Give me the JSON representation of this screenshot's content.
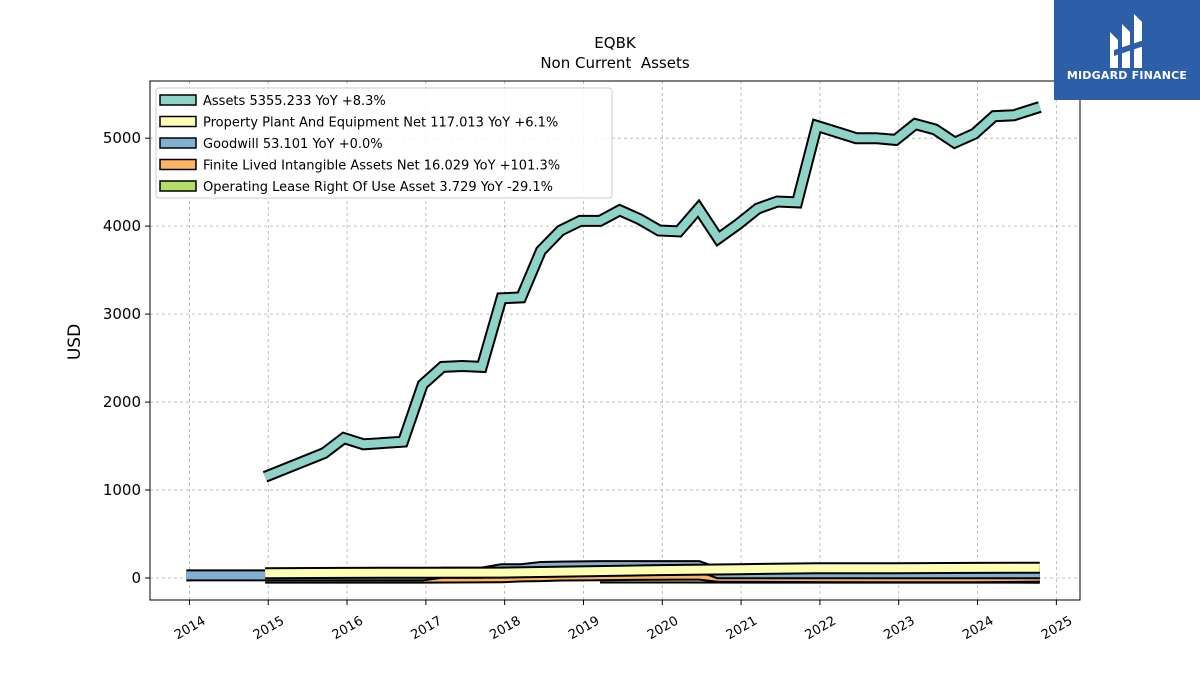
{
  "brand": {
    "name": "MIDGARD FINANCE",
    "bg_color": "#2c5fa8",
    "icon": "midgard-logo-icon"
  },
  "chart_data": {
    "type": "area",
    "title": "EQBK",
    "subtitle": "Non Current  Assets",
    "ylabel": "USD",
    "xlabel": "",
    "ylim": [
      -250,
      5650
    ],
    "xlim": [
      2013.5,
      2025.3
    ],
    "yticks": [
      0,
      1000,
      2000,
      3000,
      4000,
      5000
    ],
    "xticks": [
      "2014",
      "2015",
      "2016",
      "2017",
      "2018",
      "2019",
      "2020",
      "2021",
      "2022",
      "2023",
      "2024",
      "2025"
    ],
    "grid": true,
    "legend_position": "top-left",
    "series": [
      {
        "name": "Assets  5355.233 YoY +8.3%",
        "color": "#8dd3c7",
        "x": [
          2014.96,
          2015.71,
          2015.96,
          2016.21,
          2016.71,
          2016.96,
          2017.21,
          2017.46,
          2017.71,
          2017.96,
          2018.21,
          2018.46,
          2018.71,
          2018.96,
          2019.21,
          2019.46,
          2019.71,
          2019.96,
          2020.21,
          2020.46,
          2020.71,
          2020.96,
          2021.21,
          2021.46,
          2021.71,
          2021.96,
          2022.21,
          2022.46,
          2022.71,
          2022.96,
          2023.21,
          2023.46,
          2023.71,
          2023.96,
          2024.21,
          2024.46,
          2024.79
        ],
        "values": [
          1150,
          1420,
          1590,
          1520,
          1550,
          2200,
          2400,
          2410,
          2400,
          3180,
          3190,
          3720,
          3950,
          4060,
          4060,
          4180,
          4080,
          3950,
          3940,
          4200,
          3860,
          4020,
          4200,
          4280,
          4270,
          5140,
          5070,
          5000,
          5000,
          4980,
          5160,
          5100,
          4950,
          5050,
          5250,
          5260,
          5355
        ]
      },
      {
        "name": "Property Plant And Equipment Net  117.013 YoY +6.1%",
        "color": "#ffffb3",
        "x": [
          2014.96,
          2015.96,
          2016.96,
          2017.96,
          2018.96,
          2019.96,
          2020.96,
          2021.96,
          2022.96,
          2023.96,
          2024.79
        ],
        "values": [
          55,
          58,
          60,
          62,
          75,
          90,
          100,
          110,
          110,
          115,
          117
        ]
      },
      {
        "name": "Goodwill  53.101 YoY +0.0%",
        "color": "#80b1d3",
        "x": [
          2013.96,
          2014.96,
          2015.96,
          2016.96,
          2017.21,
          2017.71,
          2017.96,
          2018.21,
          2018.46,
          2018.71,
          2019.21,
          2019.96,
          2020.46,
          2020.71,
          2021.71,
          2021.96,
          2022.96,
          2023.96,
          2024.79
        ],
        "values": [
          30,
          30,
          30,
          30,
          60,
          60,
          100,
          100,
          125,
          130,
          135,
          135,
          135,
          53,
          53,
          53,
          53,
          53,
          53
        ]
      },
      {
        "name": "Finite Lived Intangible Assets Net  16.029 YoY +101.3%",
        "color": "#fdb462",
        "x": [
          2014.96,
          2015.96,
          2016.96,
          2017.96,
          2018.21,
          2018.46,
          2018.71,
          2019.21,
          2019.96,
          2020.46,
          2020.71,
          2021.71,
          2021.96,
          2022.96,
          2023.96,
          2024.79
        ],
        "values": [
          5,
          5,
          5,
          8,
          18,
          22,
          28,
          32,
          38,
          40,
          15,
          12,
          10,
          8,
          8,
          16
        ]
      },
      {
        "name": "Operating Lease Right Of Use Asset  3.729 YoY -29.1%",
        "color": "#b3de69",
        "x": [
          2019.21,
          2020.21,
          2021.21,
          2022.21,
          2023.21,
          2024.21,
          2024.79
        ],
        "values": [
          6,
          6,
          5,
          5,
          5,
          5,
          3.729
        ]
      }
    ]
  }
}
